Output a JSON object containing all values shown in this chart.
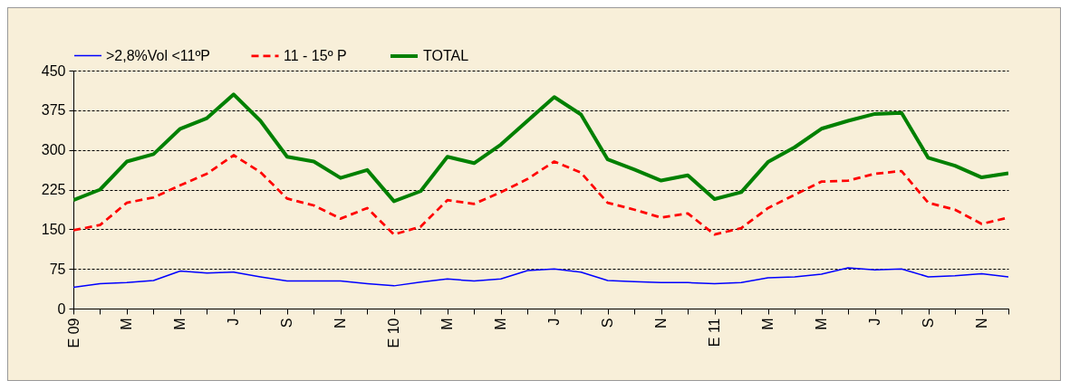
{
  "chart_data": {
    "type": "line",
    "categories": [
      "E 09",
      null,
      "M",
      null,
      "M",
      null,
      "J",
      null,
      "S",
      null,
      "N",
      null,
      "E 10",
      null,
      "M",
      null,
      "M",
      null,
      "J",
      null,
      "S",
      null,
      "N",
      null,
      "E 11",
      null,
      "M",
      null,
      "M",
      null,
      "J",
      null,
      "S",
      null,
      "N",
      null
    ],
    "series": [
      {
        "name": ">2,8%Vol <11ºP",
        "color": "#0000ff",
        "line_style": "solid",
        "values": [
          40,
          47,
          49,
          53,
          71,
          67,
          69,
          60,
          52,
          52,
          52,
          47,
          43,
          50,
          56,
          52,
          56,
          72,
          75,
          69,
          53,
          51,
          49,
          49,
          47,
          49,
          58,
          60,
          65,
          77,
          73,
          75,
          60,
          62,
          66,
          60
        ]
      },
      {
        "name": "11 - 15º P",
        "color": "#ff0000",
        "line_style": "dashed",
        "values": [
          148,
          158,
          200,
          210,
          233,
          255,
          290,
          258,
          208,
          195,
          170,
          190,
          140,
          155,
          205,
          198,
          220,
          245,
          278,
          257,
          200,
          187,
          172,
          180,
          140,
          152,
          190,
          215,
          240,
          242,
          255,
          260,
          200,
          187,
          160,
          172
        ]
      },
      {
        "name": "TOTAL",
        "color": "#008000",
        "line_style": "solid",
        "values": [
          205,
          225,
          278,
          292,
          340,
          360,
          405,
          355,
          287,
          278,
          247,
          262,
          203,
          222,
          287,
          275,
          310,
          355,
          400,
          367,
          282,
          263,
          242,
          252,
          207,
          220,
          277,
          305,
          340,
          355,
          368,
          370,
          285,
          270,
          248,
          256
        ]
      }
    ],
    "ylim": [
      0,
      450
    ],
    "yticks": [
      0,
      75,
      150,
      225,
      300,
      375,
      450
    ],
    "grid": "y",
    "legend": "top",
    "marker": "none"
  }
}
